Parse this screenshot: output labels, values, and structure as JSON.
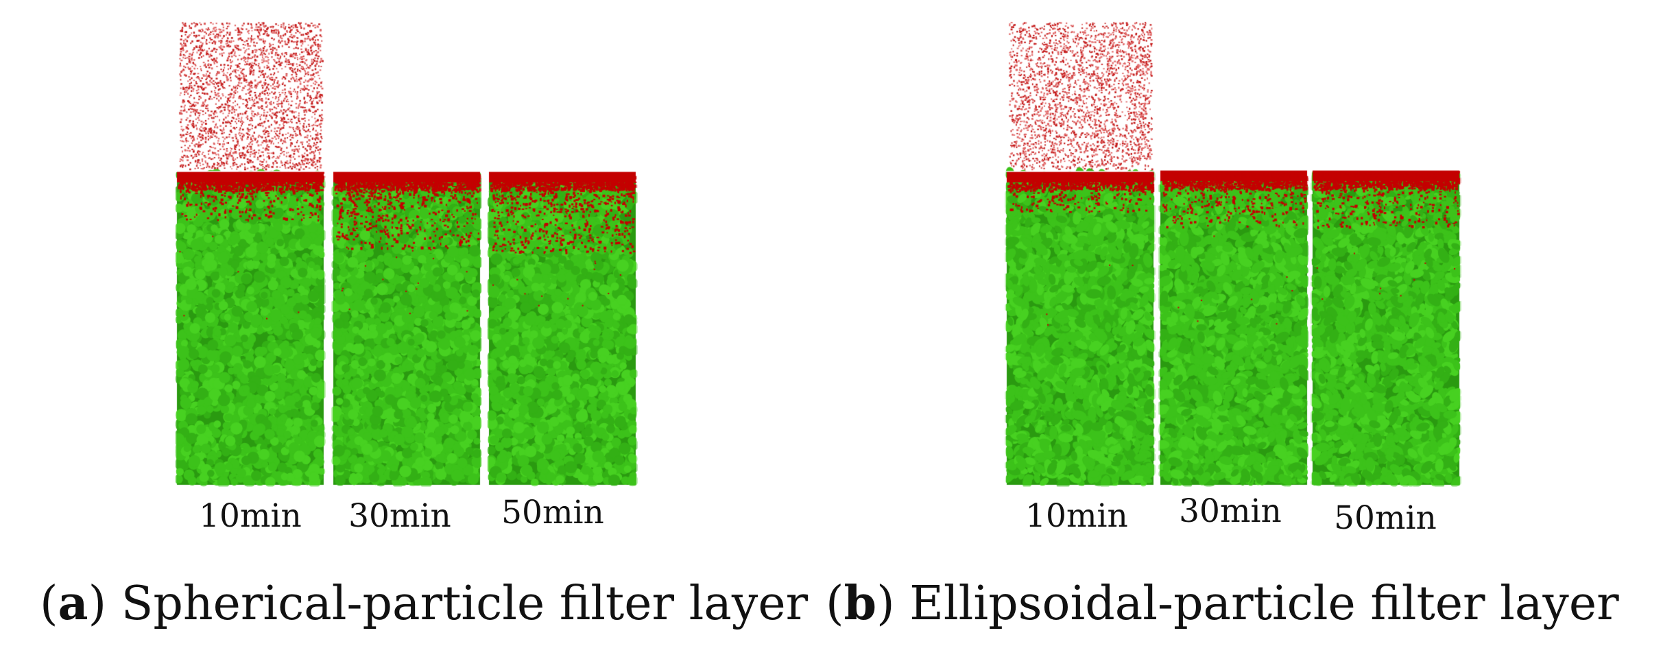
{
  "colors": {
    "filter_particle": "#3cc21a",
    "filter_particle_dark": "#2a9a10",
    "deposited_particle": "#c40000",
    "background": "#ffffff"
  },
  "panels": [
    {
      "id": "a",
      "caption_open": "(",
      "caption_letter": "a",
      "caption_text": ") Spherical-particle filter layer",
      "times": [
        "10min",
        "30min",
        "50min"
      ],
      "particle_shape": "spherical",
      "red_intrusion_level": [
        0.2,
        0.55,
        0.6
      ],
      "suspension_above_first_column": true
    },
    {
      "id": "b",
      "caption_open": "(",
      "caption_letter": "b",
      "caption_text": ") Ellipsoidal-particle filter layer",
      "times": [
        "10min",
        "30min",
        "50min"
      ],
      "particle_shape": "ellipsoidal",
      "red_intrusion_level": [
        0.1,
        0.3,
        0.3
      ],
      "suspension_above_first_column": true
    }
  ]
}
